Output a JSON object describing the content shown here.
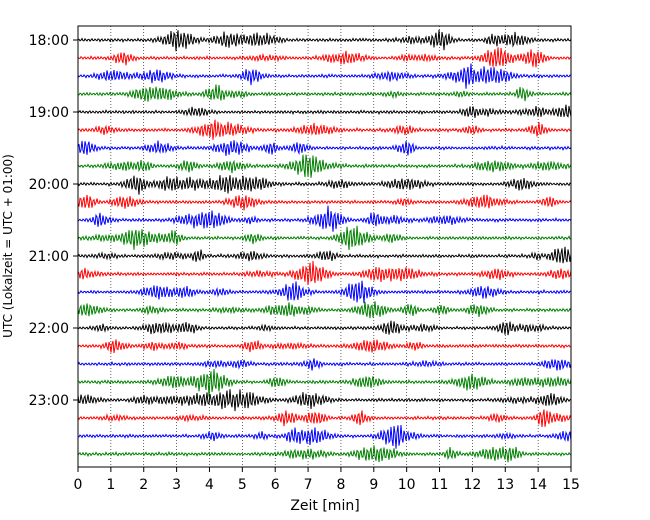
{
  "chart_data": {
    "type": "line",
    "title": "",
    "xlabel": "Zeit  [min]",
    "ylabel": "UTC (Lokalzeit = UTC + 01:00)",
    "xlim": [
      0,
      15
    ],
    "x_ticks": [
      "0",
      "1",
      "2",
      "3",
      "4",
      "5",
      "6",
      "7",
      "8",
      "9",
      "10",
      "11",
      "12",
      "13",
      "14",
      "15"
    ],
    "y_ticks": [
      "18:00",
      "19:00",
      "20:00",
      "21:00",
      "22:00",
      "23:00"
    ],
    "trace_interval_min": 15,
    "trace_colors": [
      "#000000",
      "#ff0000",
      "#0000ff",
      "#008000"
    ],
    "grid_x": true,
    "traces": [
      {
        "start": "18:00"
      },
      {
        "start": "18:15"
      },
      {
        "start": "18:30"
      },
      {
        "start": "18:45"
      },
      {
        "start": "19:00"
      },
      {
        "start": "19:15"
      },
      {
        "start": "19:30"
      },
      {
        "start": "19:45"
      },
      {
        "start": "20:00"
      },
      {
        "start": "20:15"
      },
      {
        "start": "20:30"
      },
      {
        "start": "20:45"
      },
      {
        "start": "21:00"
      },
      {
        "start": "21:15"
      },
      {
        "start": "21:30"
      },
      {
        "start": "21:45"
      },
      {
        "start": "22:00"
      },
      {
        "start": "22:15"
      },
      {
        "start": "22:30"
      },
      {
        "start": "22:45"
      },
      {
        "start": "23:00"
      },
      {
        "start": "23:15"
      },
      {
        "start": "23:30"
      },
      {
        "start": "23:45"
      }
    ]
  }
}
